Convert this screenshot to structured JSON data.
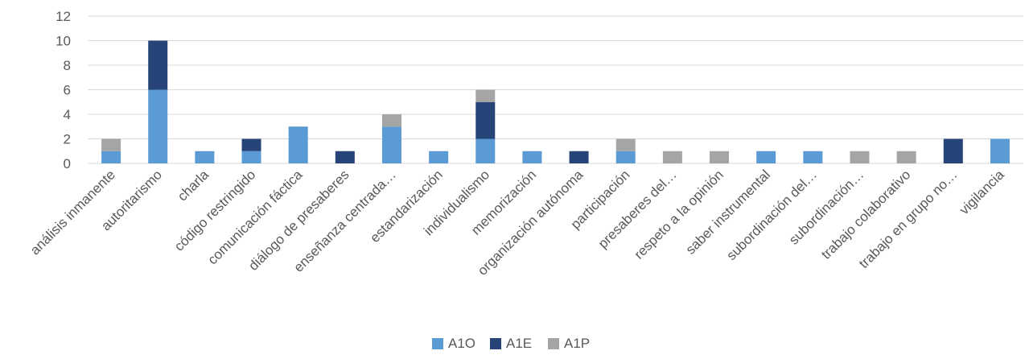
{
  "chart_data": {
    "type": "bar",
    "stacked": true,
    "title": "",
    "xlabel": "",
    "ylabel": "",
    "ylim": [
      0,
      12
    ],
    "yticks": [
      0,
      2,
      4,
      6,
      8,
      10,
      12
    ],
    "grid": true,
    "legend_position": "bottom",
    "categories": [
      "análisis inmanente",
      "autoritarismo",
      "charla",
      "código restringido",
      "comunicación fáctica",
      "diálogo de presaberes",
      "enseñanza centrada…",
      "estandarización",
      "individualismo",
      "memorización",
      "organización autónoma",
      "participación",
      "presaberes del…",
      "respeto a la opinión",
      "saber instrumental",
      "subordinación del…",
      "subordinación…",
      "trabajo colaborativo",
      "trabajo en grupo no…",
      "vigilancia"
    ],
    "series": [
      {
        "name": "A1O",
        "color": "#5b9bd5",
        "values": [
          1,
          6,
          1,
          1,
          3,
          0,
          3,
          1,
          2,
          1,
          0,
          1,
          0,
          0,
          1,
          1,
          0,
          0,
          0,
          2
        ]
      },
      {
        "name": "A1E",
        "color": "#264478",
        "values": [
          0,
          4,
          0,
          1,
          0,
          1,
          0,
          0,
          3,
          0,
          1,
          0,
          0,
          0,
          0,
          0,
          0,
          0,
          2,
          0
        ]
      },
      {
        "name": "A1P",
        "color": "#a5a5a5",
        "values": [
          1,
          0,
          0,
          0,
          0,
          0,
          1,
          0,
          1,
          0,
          0,
          1,
          1,
          1,
          0,
          0,
          1,
          1,
          0,
          0
        ]
      }
    ],
    "colors": {
      "grid": "#d9d9d9",
      "text": "#595959"
    }
  }
}
